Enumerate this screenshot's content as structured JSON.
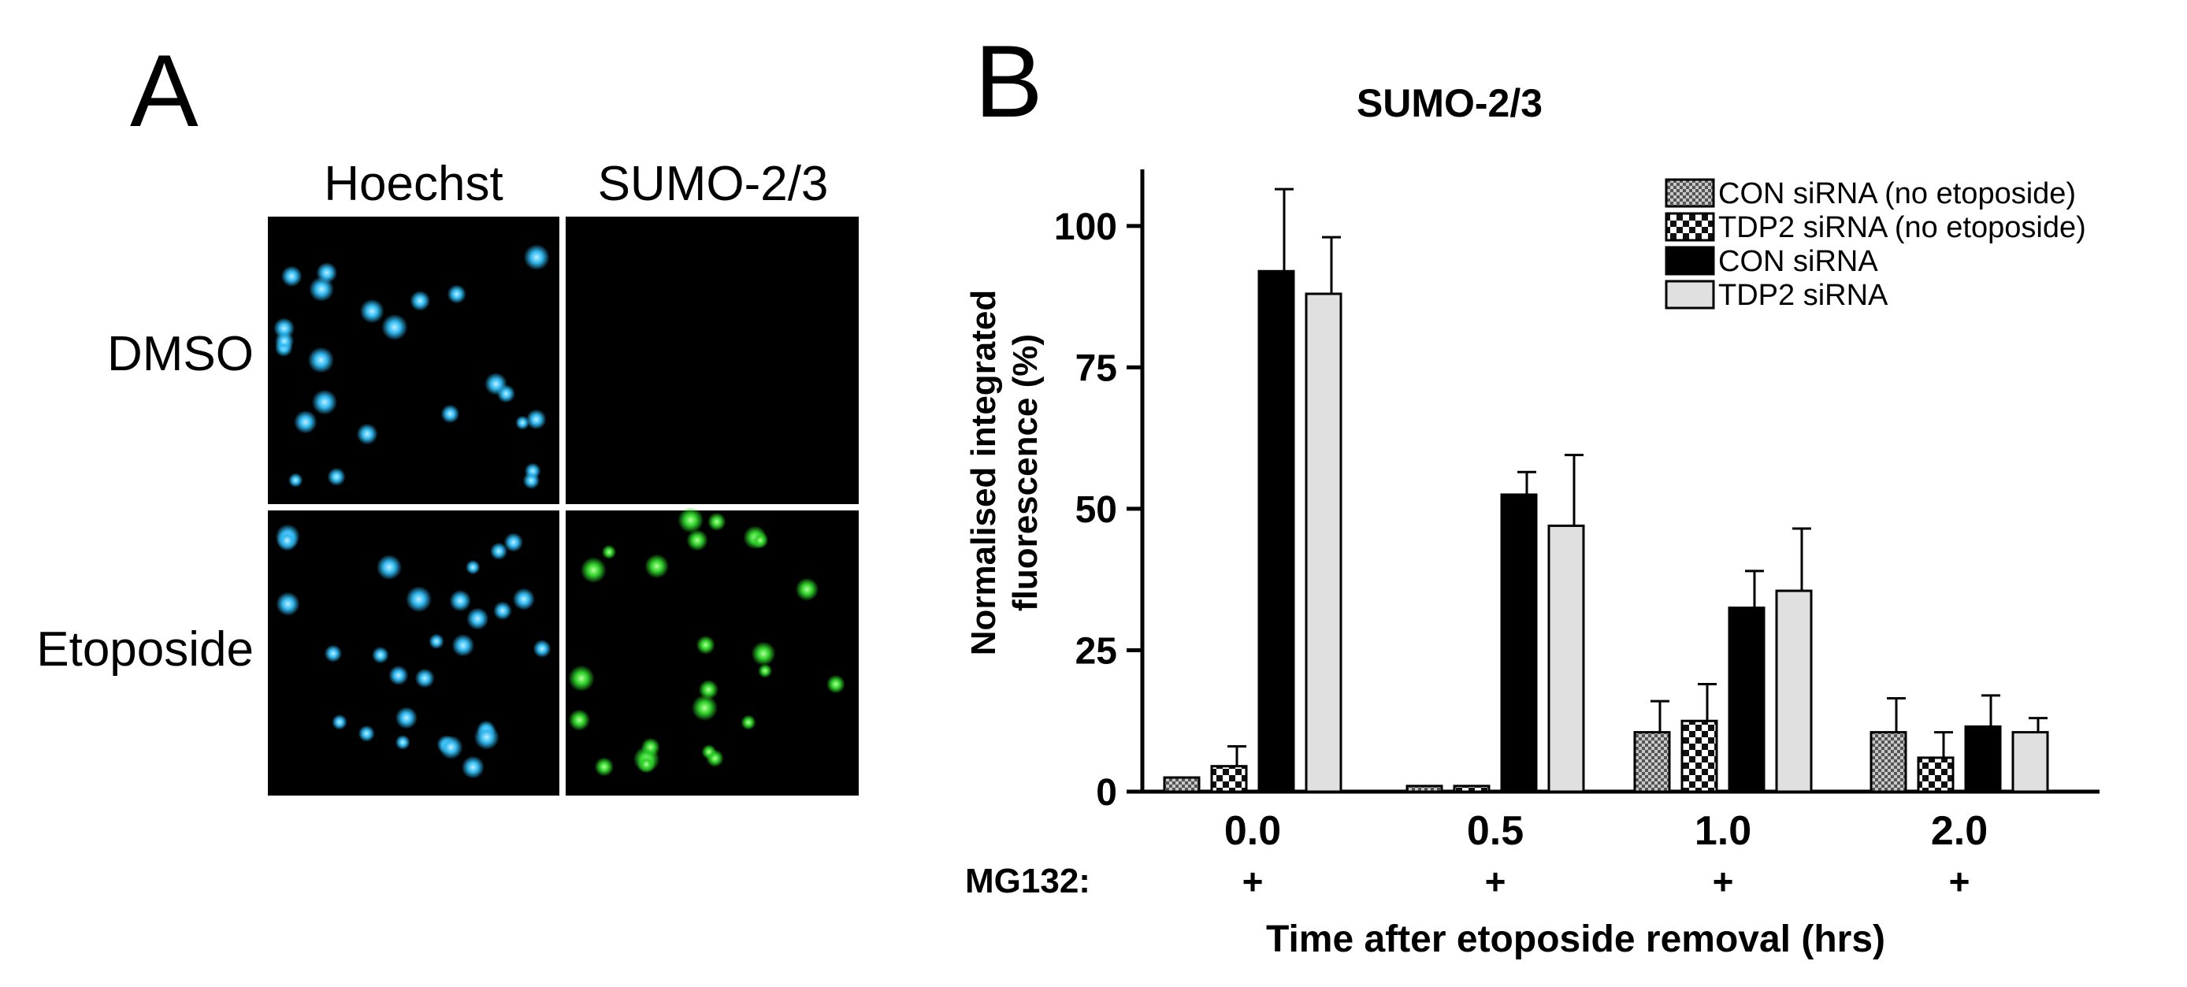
{
  "panel_a": {
    "letter": "A",
    "column_headers": [
      "Hoechst",
      "SUMO-2/3"
    ],
    "row_labels": [
      "DMSO",
      "Etoposide"
    ],
    "nucleus_colors": {
      "hoechst": "#2fb8f0",
      "sumo": "#2ed12a"
    }
  },
  "panel_b": {
    "letter": "B",
    "mg132_label": "MG132:",
    "mg132_marks": [
      "+",
      "+",
      "+",
      "+"
    ]
  },
  "chart_data": {
    "type": "bar",
    "title": "SUMO-2/3",
    "xlabel": "Time after etoposide removal (hrs)",
    "ylabel": "Normalised integrated fluorescence (%)",
    "ylabel_lines": [
      "Normalised integrated",
      "fluorescence (%)"
    ],
    "categories": [
      "0.0",
      "0.5",
      "1.0",
      "2.0"
    ],
    "ylim": [
      0,
      110
    ],
    "yticks": [
      0,
      25,
      50,
      75,
      100
    ],
    "ytick_labels": [
      "0",
      "25",
      "50",
      "75",
      "100"
    ],
    "legend_position": "top-right",
    "grid": false,
    "series": [
      {
        "name": "CON siRNA (no etoposide)",
        "pattern": "fine-check",
        "values": [
          2.5,
          1,
          10.5,
          10.5
        ],
        "errors": [
          0,
          0,
          5.5,
          6
        ]
      },
      {
        "name": "TDP2 siRNA (no etoposide)",
        "pattern": "coarse-check",
        "values": [
          4.5,
          1,
          12.5,
          6
        ],
        "errors": [
          3.5,
          0,
          6.5,
          4.5
        ]
      },
      {
        "name": "CON siRNA",
        "pattern": "solid-black",
        "values": [
          92,
          52.5,
          32.5,
          11.5
        ],
        "errors": [
          14.5,
          4,
          6.5,
          5.5
        ]
      },
      {
        "name": "TDP2 siRNA",
        "pattern": "solid-light-grey",
        "values": [
          88,
          47,
          35.5,
          10.5
        ],
        "errors": [
          10,
          12.5,
          11,
          2.5
        ]
      }
    ]
  }
}
